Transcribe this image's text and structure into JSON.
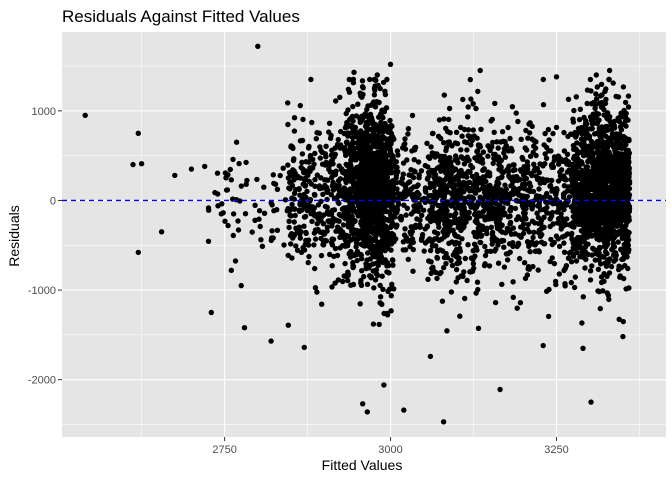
{
  "chart_data": {
    "type": "scatter",
    "title": "Residuals Against Fitted Values",
    "xlabel": "Fitted Values",
    "ylabel": "Residuals",
    "xlim": [
      2505,
      3415
    ],
    "ylim": [
      -2640,
      1880
    ],
    "xticks": [
      2750,
      3000,
      3250
    ],
    "xtick_labels": [
      "2750",
      "3000",
      "3250"
    ],
    "yticks": [
      -2000,
      -1000,
      0,
      1000
    ],
    "ytick_labels": [
      "-2000",
      "-1000",
      "0",
      "1000"
    ],
    "grid": true,
    "panel_background": "#e5e5e5",
    "grid_color": "#ffffff",
    "point_color": "#000000",
    "reference_line": {
      "y": 0,
      "style": "dashed",
      "color": "#0000ff"
    },
    "outliers": [
      {
        "x": 2540,
        "y": 950
      },
      {
        "x": 2620,
        "y": 750
      },
      {
        "x": 2612,
        "y": 400
      },
      {
        "x": 2625,
        "y": 410
      },
      {
        "x": 2620,
        "y": -580
      },
      {
        "x": 2655,
        "y": -350
      },
      {
        "x": 2675,
        "y": 280
      },
      {
        "x": 2730,
        "y": -1250
      },
      {
        "x": 2760,
        "y": -780
      },
      {
        "x": 2780,
        "y": -1420
      },
      {
        "x": 2775,
        "y": -950
      },
      {
        "x": 2800,
        "y": 1720
      },
      {
        "x": 2820,
        "y": -1570
      },
      {
        "x": 2870,
        "y": -1640
      },
      {
        "x": 2958,
        "y": -2270
      },
      {
        "x": 2965,
        "y": -2360
      },
      {
        "x": 2990,
        "y": -2060
      },
      {
        "x": 3000,
        "y": 1520
      },
      {
        "x": 3020,
        "y": -2340
      },
      {
        "x": 3080,
        "y": -2470
      },
      {
        "x": 3165,
        "y": -2110
      },
      {
        "x": 3302,
        "y": -2250
      },
      {
        "x": 3135,
        "y": 1450
      },
      {
        "x": 2945,
        "y": 1430
      },
      {
        "x": 2980,
        "y": 1400
      },
      {
        "x": 2880,
        "y": 1350
      },
      {
        "x": 3060,
        "y": -1740
      },
      {
        "x": 3230,
        "y": -1620
      },
      {
        "x": 3290,
        "y": -1650
      },
      {
        "x": 3350,
        "y": -1520
      },
      {
        "x": 3330,
        "y": 1450
      },
      {
        "x": 3310,
        "y": 1400
      },
      {
        "x": 3250,
        "y": 1380
      },
      {
        "x": 2700,
        "y": 350
      },
      {
        "x": 2720,
        "y": 380
      },
      {
        "x": 2740,
        "y": -60
      },
      {
        "x": 2745,
        "y": -150
      },
      {
        "x": 2760,
        "y": 230
      },
      {
        "x": 2768,
        "y": 650
      }
    ],
    "clusters": [
      {
        "x_min": 2725,
        "x_max": 2845,
        "y_mean": 0,
        "y_sd": 280,
        "count": 60
      },
      {
        "x_min": 2845,
        "x_max": 2930,
        "y_mean": 0,
        "y_sd": 400,
        "count": 320
      },
      {
        "x_min": 2930,
        "x_max": 3005,
        "y_mean": 100,
        "y_sd": 520,
        "count": 900
      },
      {
        "x_min": 2955,
        "x_max": 2992,
        "y_mean": 150,
        "y_sd": 330,
        "count": 500
      },
      {
        "x_min": 3005,
        "x_max": 3060,
        "y_mean": 0,
        "y_sd": 380,
        "count": 180
      },
      {
        "x_min": 3060,
        "x_max": 3165,
        "y_mean": 0,
        "y_sd": 430,
        "count": 650
      },
      {
        "x_min": 3165,
        "x_max": 3275,
        "y_mean": 0,
        "y_sd": 430,
        "count": 450
      },
      {
        "x_min": 3275,
        "x_max": 3360,
        "y_mean": 100,
        "y_sd": 470,
        "count": 1100
      },
      {
        "x_min": 3310,
        "x_max": 3360,
        "y_mean": 150,
        "y_sd": 300,
        "count": 500
      }
    ]
  }
}
